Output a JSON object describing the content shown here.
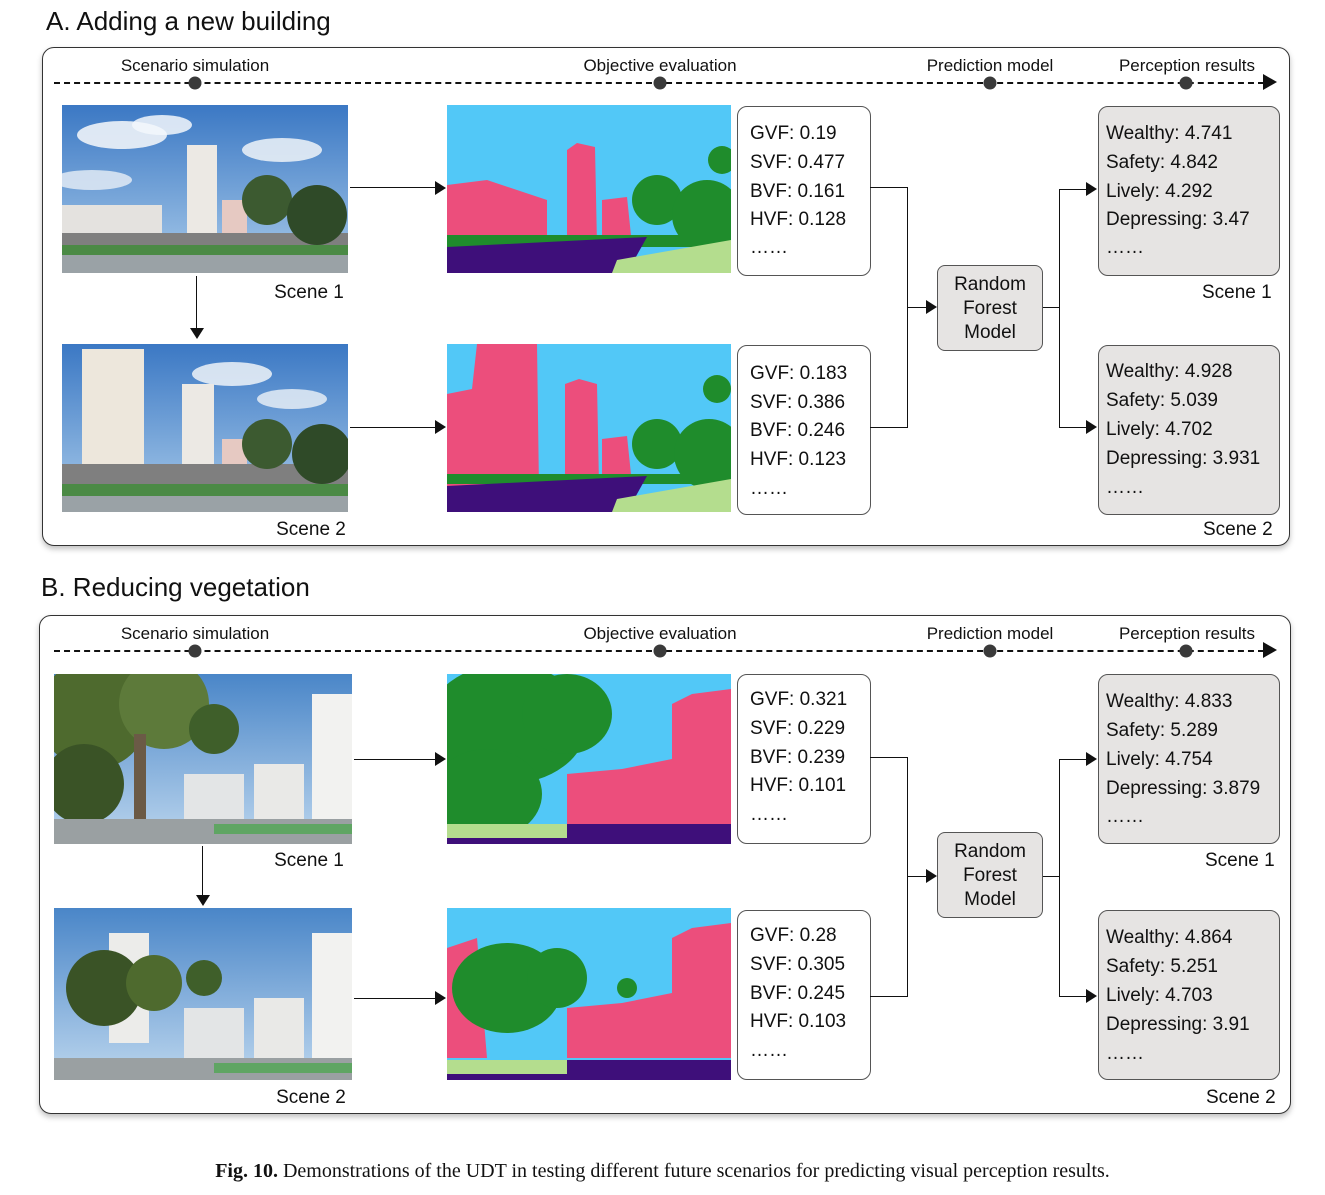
{
  "sections": [
    {
      "title": "A. Adding a new building",
      "stages": [
        "Scenario simulation",
        "Objective evaluation",
        "Prediction model",
        "Perception results"
      ],
      "scenes": [
        {
          "label": "Scene 1",
          "metrics": [
            "GVF:  0.19",
            "SVF:  0.477",
            "BVF:  0.161",
            "HVF:  0.128",
            "……"
          ],
          "results": [
            "Wealthy:  4.741",
            "Safety:  4.842",
            "Lively:  4.292",
            "Depressing:  3.47",
            "……"
          ]
        },
        {
          "label": "Scene 2",
          "metrics": [
            "GVF:  0.183",
            "SVF:  0.386",
            "BVF:  0.246",
            "HVF:  0.123",
            "……"
          ],
          "results": [
            "Wealthy:  4.928",
            "Safety:  5.039",
            "Lively:  4.702",
            "Depressing:  3.931",
            "……"
          ]
        }
      ],
      "model": [
        "Random",
        "Forest",
        "Model"
      ]
    },
    {
      "title": "B. Reducing vegetation",
      "stages": [
        "Scenario simulation",
        "Objective evaluation",
        "Prediction model",
        "Perception results"
      ],
      "scenes": [
        {
          "label": "Scene 1",
          "metrics": [
            "GVF:  0.321",
            "SVF:  0.229",
            "BVF:  0.239",
            "HVF:  0.101",
            "……"
          ],
          "results": [
            "Wealthy:  4.833",
            "Safety:  5.289",
            "Lively:  4.754",
            "Depressing:  3.879",
            "……"
          ]
        },
        {
          "label": "Scene 2",
          "metrics": [
            "GVF:  0.28",
            "SVF:  0.305",
            "BVF:  0.245",
            "HVF:  0.103",
            "……"
          ],
          "results": [
            "Wealthy:  4.864",
            "Safety:  5.251",
            "Lively:  4.703",
            "Depressing:  3.91",
            "……"
          ]
        }
      ],
      "model": [
        "Random",
        "Forest",
        "Model"
      ]
    }
  ],
  "caption": {
    "label": "Fig. 10.",
    "text": " Demonstrations of the UDT in testing different future scenarios for predicting visual perception results."
  },
  "colors": {
    "sky": "#52c8f7",
    "building": "#ec4e7c",
    "vegetation": "#1f8c2c",
    "road": "#3e0f7a",
    "sidewalk": "#b4dd8e",
    "result_fill": "#e6e4e3"
  }
}
